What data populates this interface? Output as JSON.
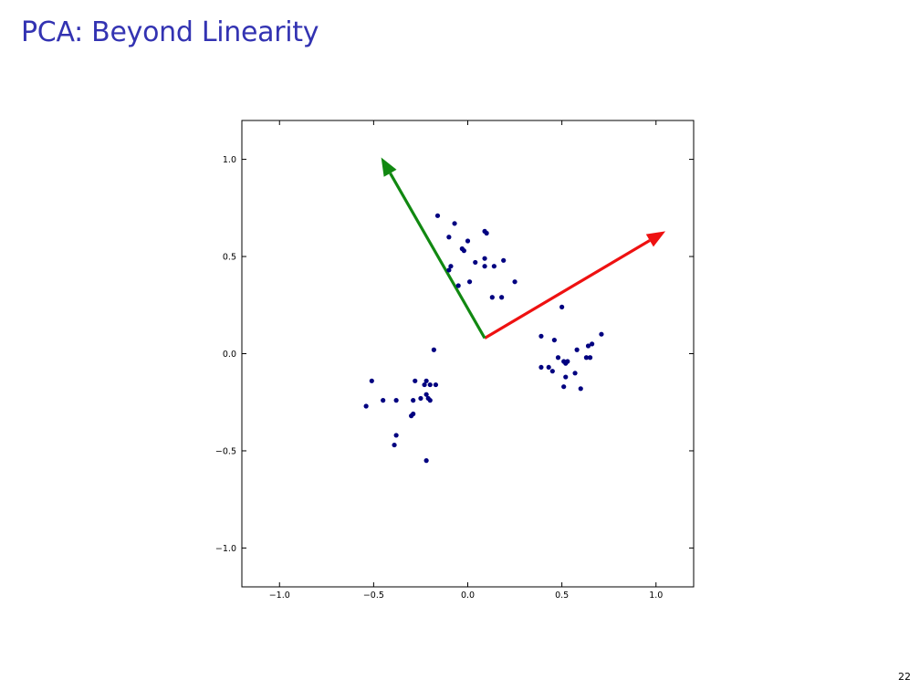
{
  "slide": {
    "title": "PCA: Beyond Linearity",
    "page_number": "22"
  },
  "chart_data": {
    "type": "scatter",
    "xlim": [
      -1.2,
      1.2
    ],
    "ylim": [
      -1.2,
      1.2
    ],
    "grid": false,
    "x_ticks": [
      -1.0,
      -0.5,
      0.0,
      0.5,
      1.0
    ],
    "x_tick_labels": [
      "−1.0",
      "−0.5",
      "0.0",
      "0.5",
      "1.0"
    ],
    "y_ticks": [
      -1.0,
      -0.5,
      0.0,
      0.5,
      1.0
    ],
    "y_tick_labels": [
      "−1.0",
      "−0.5",
      "0.0",
      "0.5",
      "1.0"
    ],
    "colors": {
      "points": "#000080",
      "arrow_red": "#ee1111",
      "arrow_green": "#118811"
    },
    "points": [
      [
        -0.16,
        0.71
      ],
      [
        -0.07,
        0.67
      ],
      [
        0.09,
        0.63
      ],
      [
        0.1,
        0.62
      ],
      [
        -0.1,
        0.6
      ],
      [
        0.0,
        0.58
      ],
      [
        -0.03,
        0.54
      ],
      [
        -0.02,
        0.53
      ],
      [
        0.09,
        0.49
      ],
      [
        0.19,
        0.48
      ],
      [
        0.04,
        0.47
      ],
      [
        0.09,
        0.45
      ],
      [
        0.14,
        0.45
      ],
      [
        -0.09,
        0.45
      ],
      [
        -0.1,
        0.43
      ],
      [
        0.25,
        0.37
      ],
      [
        0.01,
        0.37
      ],
      [
        -0.05,
        0.35
      ],
      [
        0.13,
        0.29
      ],
      [
        0.18,
        0.29
      ],
      [
        0.5,
        0.24
      ],
      [
        0.71,
        0.1
      ],
      [
        0.39,
        0.09
      ],
      [
        0.46,
        0.07
      ],
      [
        0.66,
        0.05
      ],
      [
        0.64,
        0.04
      ],
      [
        0.58,
        0.02
      ],
      [
        0.65,
        -0.02
      ],
      [
        0.63,
        -0.02
      ],
      [
        0.48,
        -0.02
      ],
      [
        0.51,
        -0.04
      ],
      [
        0.53,
        -0.04
      ],
      [
        0.52,
        -0.05
      ],
      [
        0.39,
        -0.07
      ],
      [
        0.43,
        -0.07
      ],
      [
        0.45,
        -0.09
      ],
      [
        0.57,
        -0.1
      ],
      [
        0.52,
        -0.12
      ],
      [
        0.51,
        -0.17
      ],
      [
        0.6,
        -0.18
      ],
      [
        -0.18,
        0.02
      ],
      [
        -0.51,
        -0.14
      ],
      [
        -0.28,
        -0.14
      ],
      [
        -0.22,
        -0.14
      ],
      [
        -0.23,
        -0.16
      ],
      [
        -0.2,
        -0.16
      ],
      [
        -0.17,
        -0.16
      ],
      [
        -0.22,
        -0.21
      ],
      [
        -0.21,
        -0.23
      ],
      [
        -0.2,
        -0.24
      ],
      [
        -0.38,
        -0.24
      ],
      [
        -0.25,
        -0.23
      ],
      [
        -0.45,
        -0.24
      ],
      [
        -0.29,
        -0.24
      ],
      [
        -0.54,
        -0.27
      ],
      [
        -0.29,
        -0.31
      ],
      [
        -0.3,
        -0.32
      ],
      [
        -0.38,
        -0.42
      ],
      [
        -0.39,
        -0.47
      ],
      [
        -0.22,
        -0.55
      ]
    ],
    "arrows": [
      {
        "color_key": "arrow_red",
        "from": [
          0.09,
          0.08
        ],
        "to": [
          1.05,
          0.63
        ]
      },
      {
        "color_key": "arrow_green",
        "from": [
          0.09,
          0.08
        ],
        "to": [
          -0.46,
          1.01
        ]
      }
    ]
  }
}
